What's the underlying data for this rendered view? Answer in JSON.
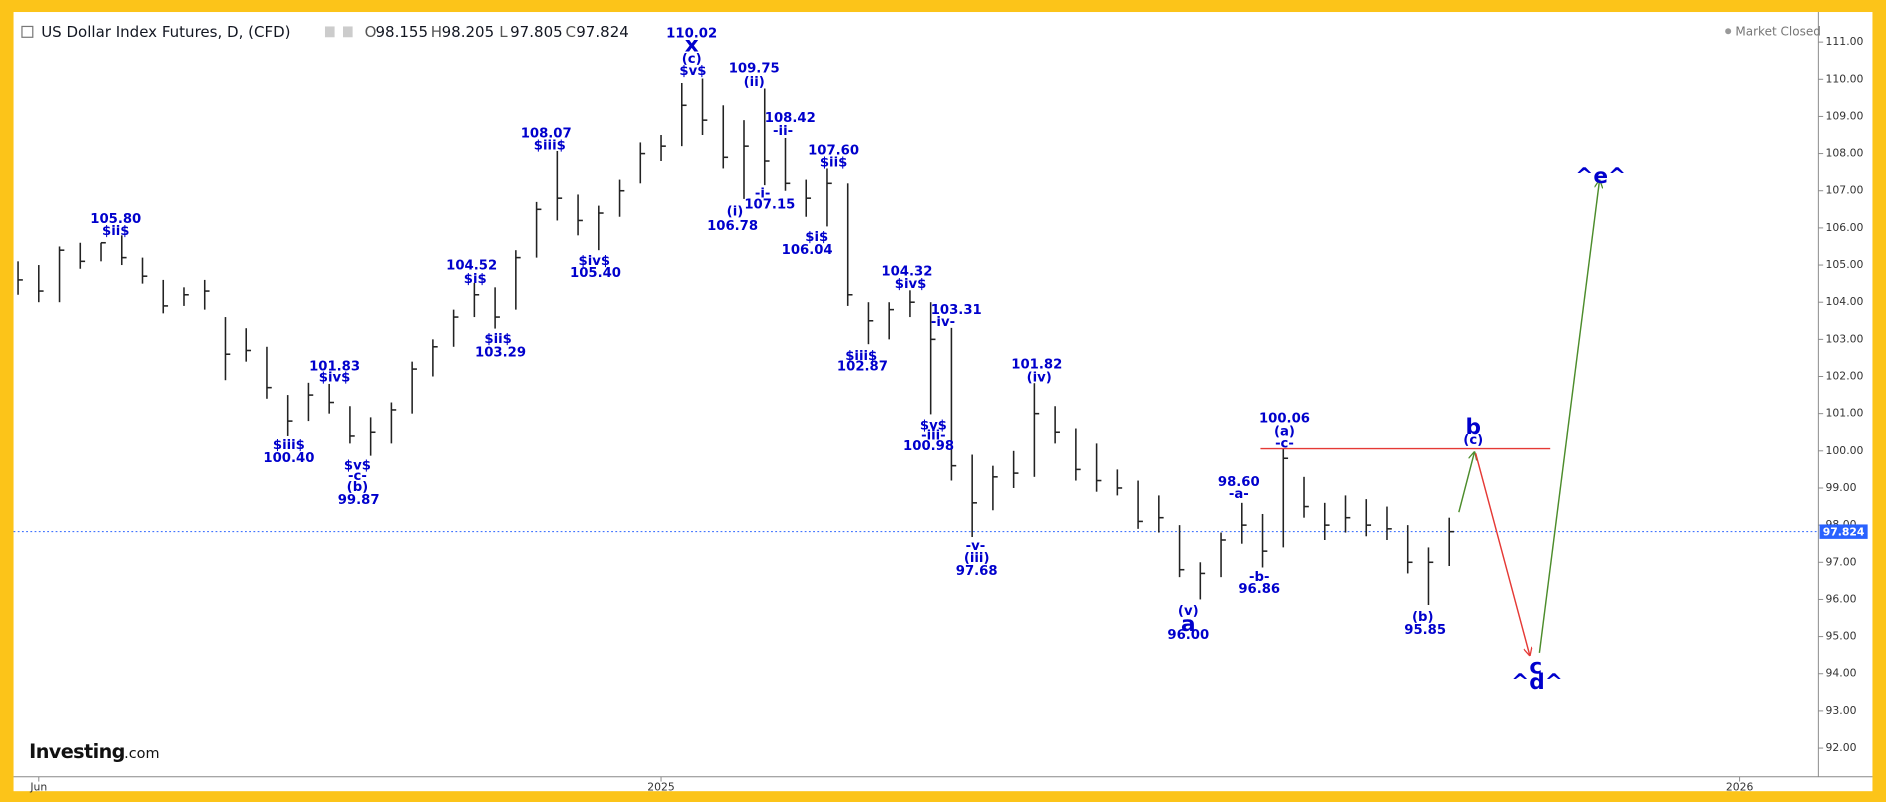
{
  "chart_data": {
    "type": "ohlc",
    "header": {
      "title": "US Dollar Index Futures, D, (CFD)",
      "fields": [
        {
          "label": "O",
          "value": 98.155
        },
        {
          "label": "H",
          "value": 98.205
        },
        {
          "label": "L",
          "value": 97.805
        },
        {
          "label": "C",
          "value": 97.824
        }
      ],
      "status": "Market Closed"
    },
    "brand": {
      "name": "Investing",
      "suffix": ".com"
    },
    "color": "#222222",
    "annotation_color": "#0000cc",
    "level": 100.06,
    "level_color": "#e53935",
    "last_price_color": "#2962ff",
    "categories": [
      null,
      "Jun",
      null,
      null,
      null,
      null,
      null,
      null,
      null,
      null,
      null,
      null,
      null,
      null,
      null,
      null,
      null,
      null,
      null,
      null,
      null,
      null,
      null,
      null,
      null,
      null,
      null,
      null,
      null,
      null,
      null,
      "2025",
      null,
      null,
      null,
      null,
      null,
      null,
      null,
      null,
      null,
      null,
      null,
      null,
      null,
      null,
      null,
      null,
      null,
      null,
      null,
      null,
      null,
      null,
      null,
      null,
      null,
      null,
      null,
      null,
      null,
      null,
      null,
      null,
      null,
      null,
      null,
      null,
      null,
      null,
      null,
      null,
      null,
      null,
      null,
      null,
      null,
      null,
      null,
      null,
      null,
      null,
      null,
      "2026",
      null,
      null,
      null
    ],
    "high": [
      105.1,
      105.0,
      105.5,
      105.6,
      105.6,
      105.8,
      105.2,
      104.6,
      104.4,
      104.6,
      103.6,
      103.3,
      102.8,
      101.5,
      101.83,
      101.8,
      101.2,
      100.9,
      101.3,
      102.4,
      103.0,
      103.8,
      104.52,
      104.4,
      105.4,
      106.7,
      108.07,
      106.9,
      106.6,
      107.3,
      108.3,
      108.5,
      109.9,
      110.02,
      109.3,
      108.9,
      109.75,
      108.42,
      107.3,
      107.6,
      107.2,
      104.0,
      104.0,
      104.32,
      104.0,
      103.31,
      99.9,
      99.6,
      100.0,
      101.82,
      101.2,
      100.6,
      100.2,
      99.5,
      99.2,
      98.8,
      98.0,
      97.0,
      97.8,
      98.6,
      98.3,
      100.06,
      99.3,
      98.6,
      98.8,
      98.7,
      98.5,
      98.0,
      97.4,
      98.2,
      null,
      null,
      null,
      null,
      null,
      null,
      null,
      null,
      null,
      null,
      null,
      null,
      null,
      null,
      null,
      null,
      null
    ],
    "low": [
      104.2,
      104.0,
      104.0,
      104.9,
      105.1,
      105.0,
      104.5,
      103.7,
      103.9,
      103.8,
      101.9,
      102.4,
      101.4,
      100.4,
      100.8,
      101.0,
      100.2,
      99.87,
      100.2,
      101.0,
      102.0,
      102.8,
      103.6,
      103.29,
      103.8,
      105.2,
      106.2,
      105.8,
      105.4,
      106.3,
      107.2,
      107.8,
      108.2,
      108.5,
      107.6,
      106.78,
      107.15,
      107.0,
      106.3,
      106.04,
      103.9,
      102.87,
      103.0,
      103.6,
      100.98,
      99.2,
      97.68,
      98.4,
      99.0,
      99.3,
      100.2,
      99.2,
      98.9,
      98.8,
      97.9,
      97.8,
      96.6,
      96.0,
      96.6,
      97.5,
      96.86,
      97.4,
      98.2,
      97.6,
      97.8,
      97.7,
      97.6,
      96.7,
      95.85,
      96.9,
      null,
      null,
      null,
      null,
      null,
      null,
      null,
      null,
      null,
      null,
      null,
      null,
      null,
      null,
      null,
      null,
      null
    ],
    "close": [
      104.6,
      104.3,
      105.4,
      105.1,
      105.6,
      105.2,
      104.7,
      103.9,
      104.2,
      104.3,
      102.6,
      102.7,
      101.7,
      100.8,
      101.5,
      101.3,
      100.4,
      100.5,
      101.1,
      102.2,
      102.8,
      103.6,
      104.2,
      103.6,
      105.2,
      106.5,
      106.8,
      106.2,
      106.4,
      107.0,
      108.0,
      108.2,
      109.3,
      108.9,
      107.9,
      108.2,
      107.8,
      107.2,
      106.8,
      107.2,
      104.2,
      103.5,
      103.8,
      104.0,
      103.0,
      99.6,
      98.6,
      99.3,
      99.4,
      101.0,
      100.5,
      99.5,
      99.2,
      99.0,
      98.1,
      98.2,
      96.8,
      96.7,
      97.6,
      98.0,
      97.3,
      99.8,
      98.5,
      98.0,
      98.2,
      98.0,
      97.9,
      97.0,
      97.0,
      97.824,
      null,
      null,
      null,
      null,
      null,
      null,
      null,
      null,
      null,
      null,
      null,
      null,
      null,
      null,
      null,
      null,
      null
    ],
    "ylim": [
      91.26,
      111.81
    ],
    "yticks": [
      {
        "value": 92,
        "label": "92.00"
      },
      {
        "value": 93,
        "label": "93.00"
      },
      {
        "value": 94,
        "label": "94.00"
      },
      {
        "value": 95,
        "label": "95.00"
      },
      {
        "value": 96,
        "label": "96.00"
      },
      {
        "value": 97,
        "label": "97.00"
      },
      {
        "value": 98,
        "label": "98.00"
      },
      {
        "value": 99,
        "label": "99.00"
      },
      {
        "value": 100,
        "label": "100.00"
      },
      {
        "value": 101,
        "label": "101.00"
      },
      {
        "value": 102,
        "label": "102.00"
      },
      {
        "value": 103,
        "label": "103.00"
      },
      {
        "value": 104,
        "label": "104.00"
      },
      {
        "value": 105,
        "label": "105.00"
      },
      {
        "value": 106,
        "label": "106.00"
      },
      {
        "value": 107,
        "label": "107.00"
      },
      {
        "value": 108,
        "label": "108.00"
      },
      {
        "value": 109,
        "label": "109.00"
      },
      {
        "value": 110,
        "label": "110.00"
      },
      {
        "value": 111,
        "label": "111.00"
      }
    ],
    "annotations": [
      "105.80",
      "$ii$",
      "101.83",
      "$iv$",
      "$iii$",
      "100.40",
      "$v$",
      "-c-",
      "(b)",
      "99.87",
      "104.52",
      "$i$",
      "$ii$",
      "103.29",
      "108.07",
      "$iii$",
      "$iv$",
      "105.40",
      "110.02",
      "x",
      "(c)",
      "$v$",
      "109.75",
      "(ii)",
      "108.42",
      "-ii-",
      "-i-",
      "107.15",
      "(i)",
      "106.78",
      "107.60",
      "$ii$",
      "$i$",
      "106.04",
      "104.32",
      "$iv$",
      "103.31",
      "-iv-",
      "$iii$",
      "102.87",
      "$v$",
      "-iii-",
      "100.98",
      "101.82",
      "(iv)",
      "-v-",
      "(iii)",
      "97.68",
      "(v)",
      "a",
      "96.00",
      "98.60",
      "-a-",
      "-b-",
      "96.86",
      "100.06",
      "(a)",
      "-c-",
      "b",
      "(c)",
      "(b)",
      "95.85",
      "c",
      "^d^",
      "^e^"
    ]
  }
}
